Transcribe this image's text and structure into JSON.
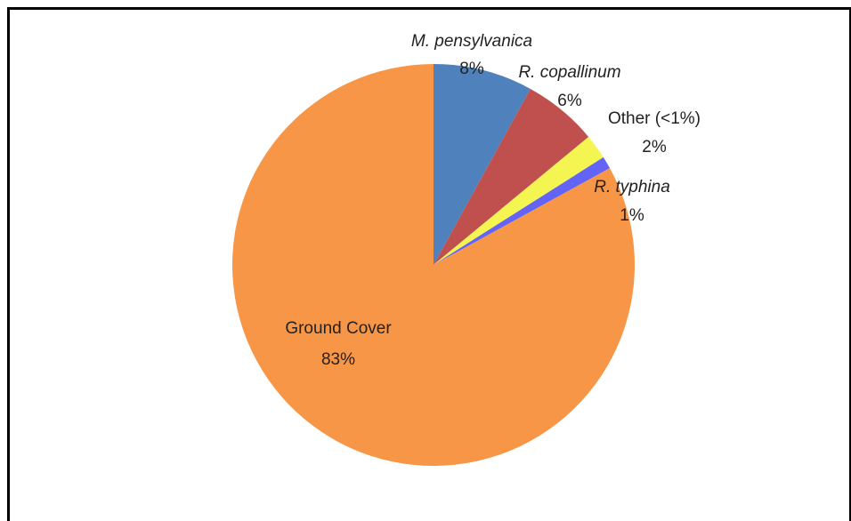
{
  "chart_data": {
    "type": "pie",
    "categories": [
      "M. pensylvanica",
      "R. copallinum",
      "Other (<1%)",
      "R. typhina",
      "Ground Cover"
    ],
    "values": [
      8,
      6,
      2,
      1,
      83
    ],
    "value_labels": [
      "8%",
      "6%",
      "2%",
      "1%",
      "83%"
    ],
    "colors": [
      "#4f81bd",
      "#c0504d",
      "#f5f552",
      "#6363f7",
      "#f79646"
    ]
  }
}
